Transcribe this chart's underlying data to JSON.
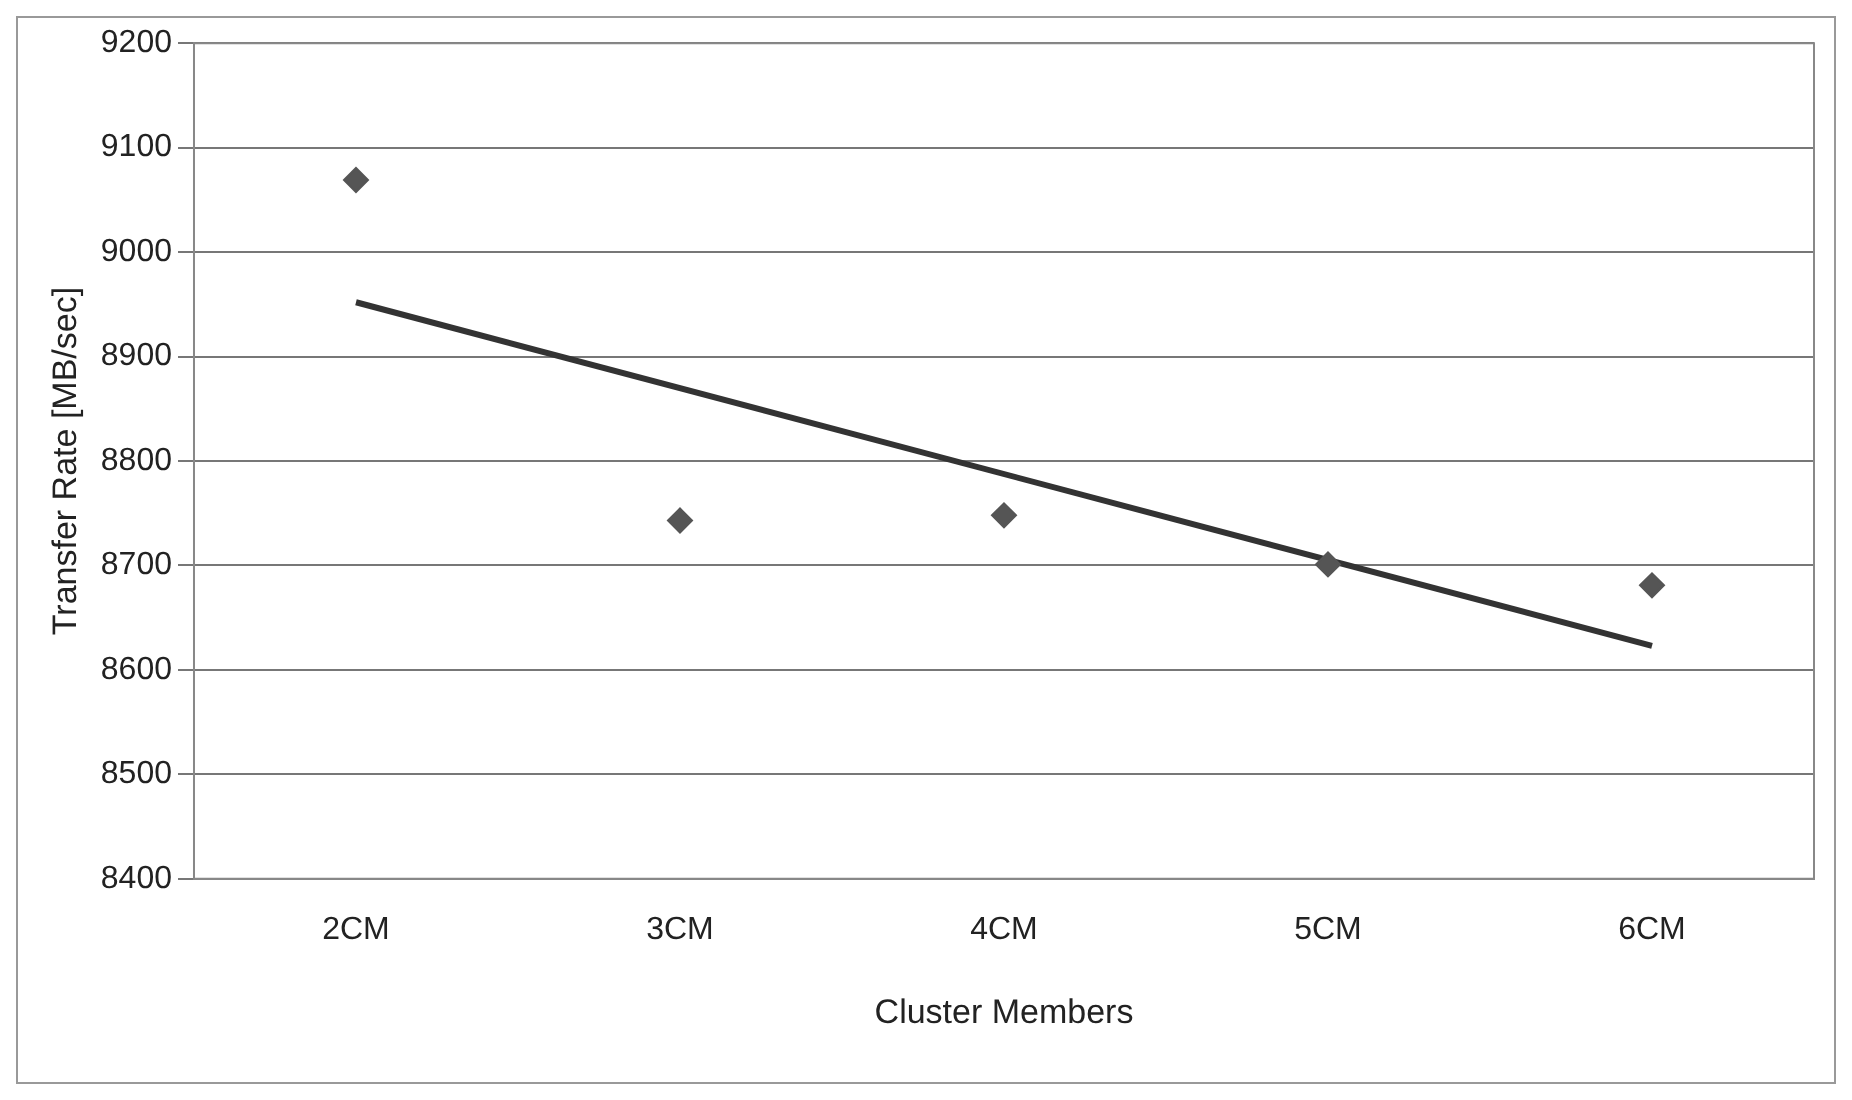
{
  "chart_data": {
    "type": "scatter",
    "xlabel": "Cluster Members",
    "ylabel": "Transfer Rate [MB/sec]",
    "categories": [
      "2CM",
      "3CM",
      "4CM",
      "5CM",
      "6CM"
    ],
    "series": [
      {
        "color": "#555555",
        "marker": "diamond",
        "values": [
          9069,
          8743,
          8748,
          8701,
          8681
        ]
      },
      {
        "type": "line",
        "color": "#333333",
        "marker": "none",
        "x": [
          "2CM",
          "6CM"
        ],
        "values": [
          8952,
          8623
        ]
      }
    ],
    "ylim": [
      8400,
      9200
    ],
    "yticks": [
      8400,
      8500,
      8600,
      8700,
      8800,
      8900,
      9000,
      9100,
      9200
    ],
    "grid": "y",
    "legend": false
  }
}
